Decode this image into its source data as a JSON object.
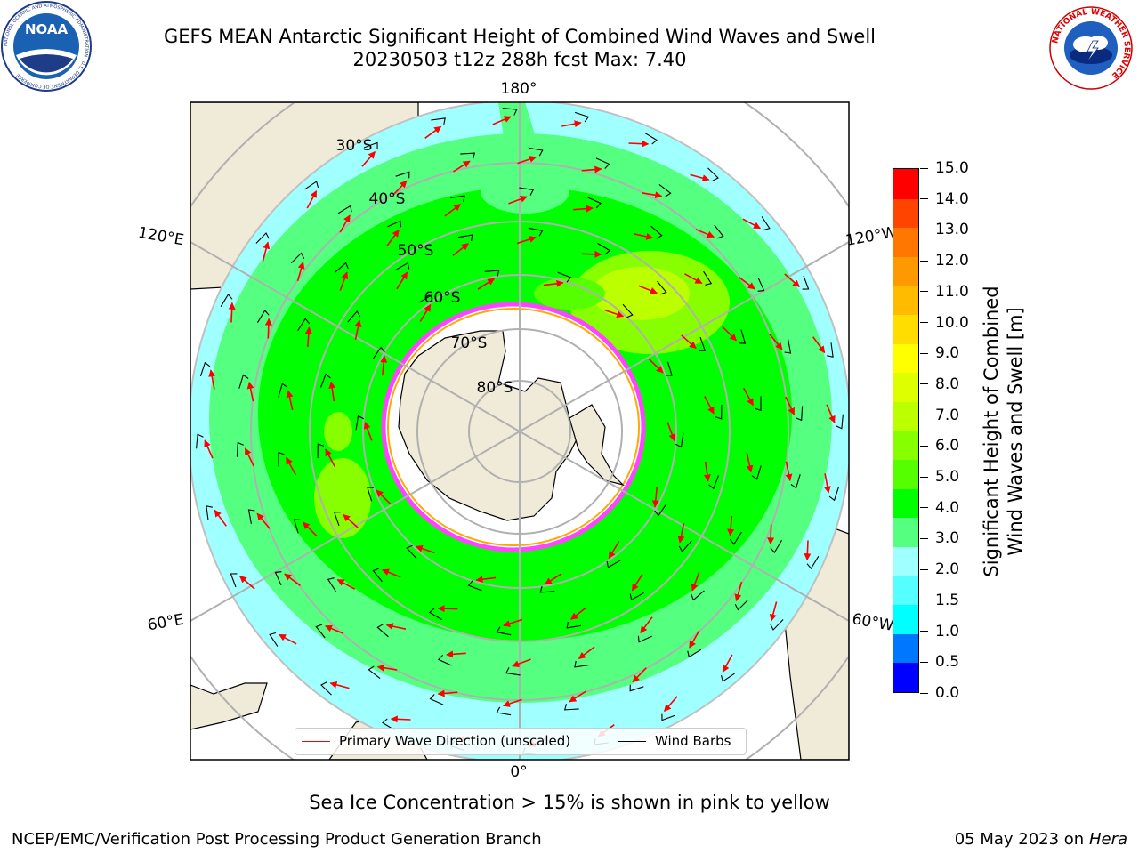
{
  "header": {
    "title_line1": "GEFS MEAN Antarctic Significant Height of Combined Wind Waves and Swell",
    "title_line2": "20230503 t12z 288h fcst   Max: 7.40"
  },
  "logos": {
    "left": {
      "name": "noaa-logo",
      "text": "NOAA",
      "ring_text": "NATIONAL OCEANIC AND ATMOSPHERIC ADMINISTRATION · U.S. DEPARTMENT OF COMMERCE"
    },
    "right": {
      "name": "nws-logo",
      "ring_text": "NATIONAL WEATHER SERVICE"
    }
  },
  "map": {
    "longitude_labels": {
      "top": "180°",
      "bottom": "0°",
      "upper_left": "120°E",
      "upper_right": "120°W",
      "lower_left": "60°E",
      "lower_right": "60°W"
    },
    "latitude_labels": [
      "30°S",
      "40°S",
      "50°S",
      "60°S",
      "70°S",
      "80°S"
    ],
    "colors": {
      "land": "#efebd8",
      "grid": "#b0b0b0",
      "ocean_blank": "#ffffff",
      "ice_edge": "#ff44ff",
      "arrow": "#ff0000",
      "barb": "#000000"
    }
  },
  "colorbar": {
    "label_line1": "Significant Height of Combined",
    "label_line2": "Wind Waves and Swell [m]",
    "ticks": [
      "15.0",
      "14.0",
      "13.0",
      "12.0",
      "11.0",
      "10.0",
      "9.0",
      "8.0",
      "7.0",
      "6.0",
      "5.0",
      "4.0",
      "3.0",
      "2.0",
      "1.5",
      "1.0",
      "0.5",
      "0.0"
    ],
    "colors_bottom_to_top": [
      "#0000ff",
      "#0077ff",
      "#00ffff",
      "#55ffff",
      "#a0ffff",
      "#55ff7f",
      "#00ff00",
      "#55ff00",
      "#88ff00",
      "#bbff00",
      "#ddff00",
      "#ffff00",
      "#ffdd00",
      "#ffbb00",
      "#ff9900",
      "#ff7700",
      "#ff4400",
      "#ff0000"
    ]
  },
  "legend": {
    "wave_label": "Primary Wave Direction (unscaled)",
    "barb_label": "Wind Barbs",
    "wave_color": "#ff0000",
    "barb_color": "#000000"
  },
  "subtitle": "Sea Ice Concentration > 15% is shown in pink to yellow",
  "footer": {
    "left": "NCEP/EMC/Verification Post Processing Product Generation Branch",
    "right_date": "05 May 2023 on",
    "right_host": "Hera"
  }
}
